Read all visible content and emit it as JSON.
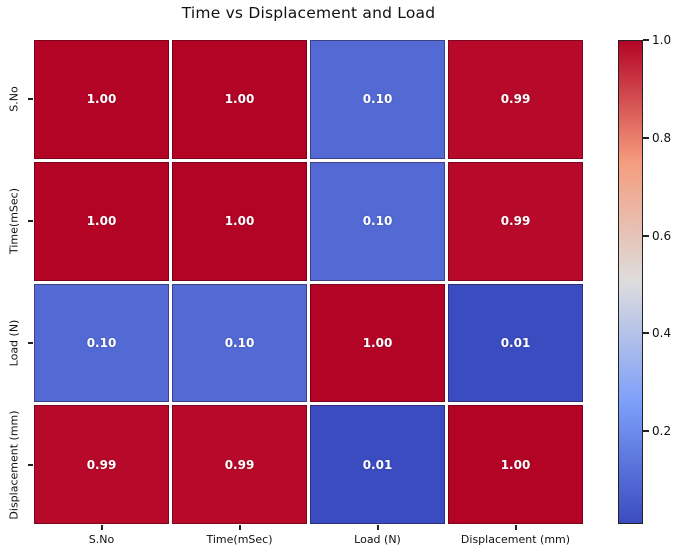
{
  "figure": {
    "background_color": "#ffffff",
    "title_color": "#111111",
    "tick_color": "#222222"
  },
  "chart_data": {
    "type": "heatmap",
    "title": "Time vs Displacement and Load",
    "x_tick_labels": [
      "S.No",
      "Time(mSec)",
      "Load (N)",
      "Displacement (mm)"
    ],
    "y_tick_labels": [
      "S.No",
      "Time(mSec)",
      "Load (N)",
      "Displacement (mm)"
    ],
    "matrix": [
      [
        1.0,
        1.0,
        0.1,
        0.99
      ],
      [
        1.0,
        1.0,
        0.1,
        0.99
      ],
      [
        0.1,
        0.1,
        1.0,
        0.01
      ],
      [
        0.99,
        0.99,
        0.01,
        1.0
      ]
    ],
    "cell_labels": [
      [
        "1.00",
        "1.00",
        "0.10",
        "0.99"
      ],
      [
        "1.00",
        "1.00",
        "0.10",
        "0.99"
      ],
      [
        "0.10",
        "0.10",
        "1.00",
        "0.01"
      ],
      [
        "0.99",
        "0.99",
        "0.01",
        "1.00"
      ]
    ],
    "cell_text_color": "#ffffff",
    "vmin": 0.01,
    "vmax": 1.0,
    "grid_gap_color": "#ffffff",
    "colormap": {
      "name": "coolwarm",
      "stops": [
        {
          "t": 0.0,
          "hex": "#3b4cc0"
        },
        {
          "t": 0.25,
          "hex": "#7c9ff9"
        },
        {
          "t": 0.5,
          "hex": "#dddddd"
        },
        {
          "t": 0.75,
          "hex": "#f59c7d"
        },
        {
          "t": 1.0,
          "hex": "#b40426"
        }
      ]
    },
    "colorbar": {
      "position": "right",
      "tick_values": [
        1.0,
        0.8,
        0.6,
        0.4,
        0.2
      ],
      "tick_labels": [
        "1.0",
        "0.8",
        "0.6",
        "0.4",
        "0.2"
      ]
    }
  }
}
